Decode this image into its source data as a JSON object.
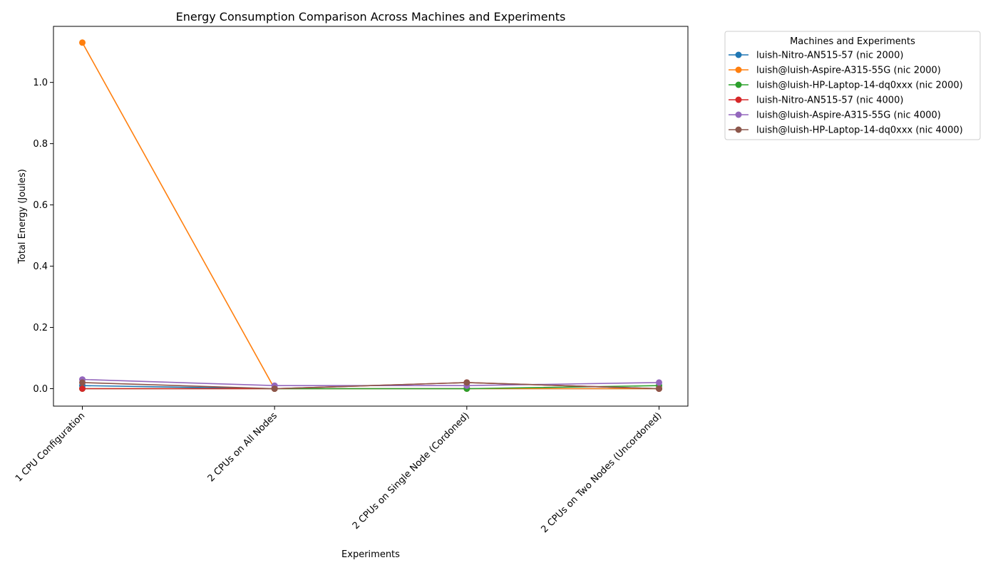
{
  "chart_data": {
    "type": "line",
    "title": "Energy Consumption Comparison Across Machines and Experiments",
    "xlabel": "Experiments",
    "ylabel": "Total Energy (Joules)",
    "categories": [
      "1 CPU Configuration",
      "2 CPUs on All Nodes",
      "2 CPUs on Single Node (Cordoned)",
      "2 CPUs on Two Nodes (Uncordoned)"
    ],
    "ylim": [
      -0.057,
      1.183
    ],
    "yticks": [
      "0.0",
      "0.2",
      "0.4",
      "0.6",
      "0.8",
      "1.0"
    ],
    "grid": false,
    "legend": {
      "title": "Machines and Experiments",
      "placement": "outside-top-right"
    },
    "series": [
      {
        "name": "luish-Nitro-AN515-57 (nic 2000)",
        "color": "#1f77b4",
        "values": [
          0.01,
          0.0,
          0.0,
          0.0
        ]
      },
      {
        "name": "luish@luish-Aspire-A315-55G (nic 2000)",
        "color": "#ff7f0e",
        "values": [
          1.13,
          0.0,
          0.0,
          0.0
        ]
      },
      {
        "name": "luish@luish-HP-Laptop-14-dq0xxx (nic 2000)",
        "color": "#2ca02c",
        "values": [
          0.0,
          0.0,
          0.0,
          0.01
        ]
      },
      {
        "name": "luish-Nitro-AN515-57 (nic 4000)",
        "color": "#d62728",
        "values": [
          0.0,
          0.0,
          0.02,
          0.0
        ]
      },
      {
        "name": "luish@luish-Aspire-A315-55G (nic 4000)",
        "color": "#9467bd",
        "values": [
          0.03,
          0.01,
          0.01,
          0.02
        ]
      },
      {
        "name": "luish@luish-HP-Laptop-14-dq0xxx (nic 4000)",
        "color": "#8c564b",
        "values": [
          0.02,
          0.0,
          0.02,
          0.0
        ]
      }
    ]
  }
}
